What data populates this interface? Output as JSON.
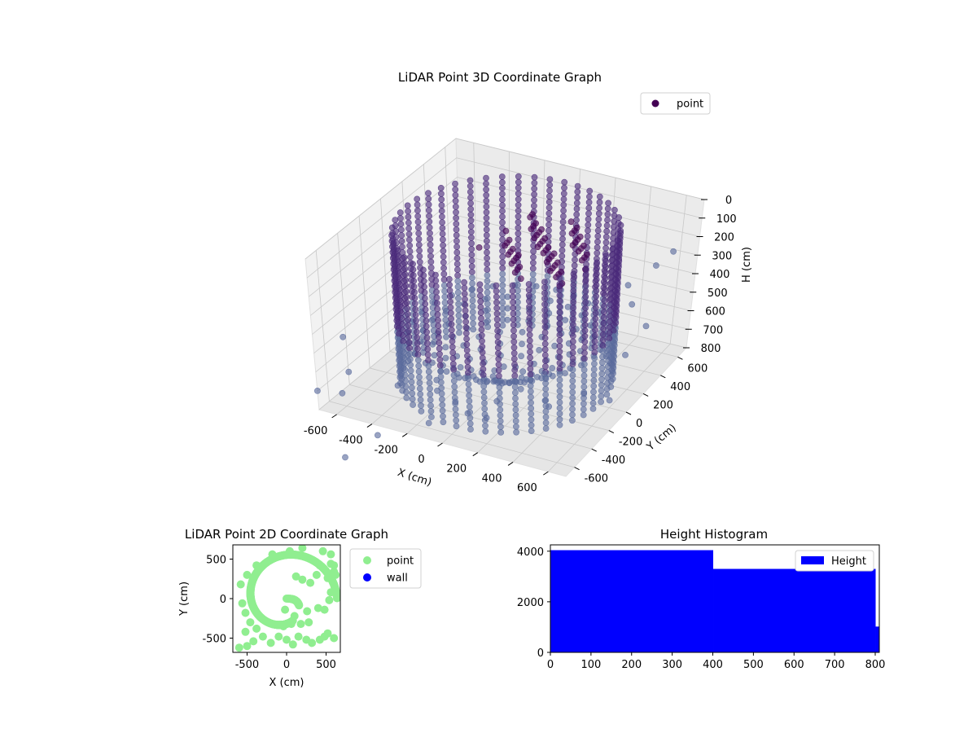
{
  "chart_data": [
    {
      "type": "scatter",
      "title": "LiDAR Point 3D Coordinate Graph",
      "xlabel": "X (cm)",
      "ylabel": "Y (cm)",
      "zlabel": "H (cm)",
      "xlim": [
        -700,
        700
      ],
      "ylim": [
        -700,
        700
      ],
      "zlim": [
        800,
        0
      ],
      "x_ticks": [
        "-600",
        "-400",
        "-200",
        "0",
        "200",
        "400",
        "600"
      ],
      "y_ticks": [
        "-600",
        "-400",
        "-200",
        "0",
        "200",
        "400",
        "600"
      ],
      "z_ticks": [
        "0",
        "100",
        "200",
        "300",
        "400",
        "500",
        "600",
        "700",
        "800"
      ],
      "grid": true,
      "legend": {
        "placement": "top-right",
        "entries": [
          "point"
        ]
      },
      "colors": {
        "point": "#440154",
        "point_dark": "#4a2a7a",
        "point_light": "#5a6b9c"
      },
      "series": [
        {
          "name": "point",
          "structures": {
            "cylinder": {
              "center": [
                0,
                0
              ],
              "radius": 550,
              "height_range": [
                0,
                800
              ]
            },
            "floor_cone": {
              "radius": 550,
              "height_range": [
                520,
                800
              ]
            },
            "ceiling_cluster": {
              "x_range": [
                -120,
                350
              ],
              "y_range": [
                -60,
                420
              ],
              "height_range": [
                90,
                230
              ]
            }
          },
          "scatter_points": [
            [
              -640,
              -520,
              480
            ],
            [
              -520,
              -760,
              640
            ],
            [
              -300,
              -820,
              780
            ],
            [
              -450,
              -900,
              900
            ],
            [
              -700,
              -700,
              700
            ],
            [
              -560,
              -620,
              600
            ],
            [
              -100,
              -550,
              560
            ],
            [
              120,
              -640,
              640
            ],
            [
              200,
              -480,
              520
            ],
            [
              260,
              -700,
              600
            ],
            [
              350,
              -500,
              520
            ],
            [
              420,
              -380,
              480
            ],
            [
              460,
              420,
              380
            ],
            [
              520,
              360,
              440
            ],
            [
              560,
              520,
              300
            ],
            [
              620,
              580,
              240
            ],
            [
              640,
              300,
              500
            ],
            [
              580,
              200,
              620
            ],
            [
              500,
              -100,
              700
            ],
            [
              380,
              -260,
              720
            ],
            [
              600,
              0,
              760
            ],
            [
              -60,
              -720,
              700
            ],
            [
              30,
              -600,
              620
            ],
            [
              -380,
              -460,
              700
            ],
            [
              -200,
              -380,
              720
            ],
            [
              100,
              -300,
              740
            ],
            [
              300,
              -150,
              760
            ]
          ]
        }
      ]
    },
    {
      "type": "scatter",
      "title": "LiDAR Point 2D Coordinate Graph",
      "xlabel": "X (cm)",
      "ylabel": "Y (cm)",
      "xlim": [
        -680,
        680
      ],
      "ylim": [
        -680,
        680
      ],
      "x_ticks": [
        "-500",
        "0",
        "500"
      ],
      "y_ticks": [
        "-500",
        "0",
        "500"
      ],
      "legend": {
        "placement": "outside-right",
        "entries": [
          "point",
          "wall"
        ]
      },
      "series": [
        {
          "name": "point",
          "color": "#90ee90",
          "points": [
            [
              -600,
              -620
            ],
            [
              -500,
              -600
            ],
            [
              -420,
              -540
            ],
            [
              -300,
              -480
            ],
            [
              -200,
              -560
            ],
            [
              -100,
              -480
            ],
            [
              0,
              -520
            ],
            [
              80,
              -580
            ],
            [
              150,
              -480
            ],
            [
              250,
              -520
            ],
            [
              320,
              -560
            ],
            [
              420,
              -520
            ],
            [
              480,
              -480
            ],
            [
              520,
              -440
            ],
            [
              600,
              -500
            ],
            [
              -520,
              -420
            ],
            [
              -40,
              -350
            ],
            [
              60,
              -320
            ],
            [
              180,
              -320
            ],
            [
              280,
              -300
            ],
            [
              -20,
              -140
            ],
            [
              100,
              -220
            ],
            [
              260,
              -160
            ],
            [
              400,
              -120
            ],
            [
              480,
              -140
            ],
            [
              540,
              -20
            ],
            [
              560,
              80
            ],
            [
              600,
              180
            ],
            [
              520,
              260
            ],
            [
              600,
              420
            ],
            [
              560,
              560
            ],
            [
              460,
              600
            ],
            [
              420,
              420
            ],
            [
              380,
              300
            ],
            [
              300,
              200
            ],
            [
              200,
              240
            ],
            [
              120,
              280
            ],
            [
              620,
              300
            ],
            [
              600,
              340
            ],
            [
              560,
              440
            ],
            [
              -580,
              180
            ],
            [
              -560,
              -60
            ],
            [
              -520,
              -180
            ],
            [
              -460,
              -300
            ],
            [
              -380,
              -380
            ],
            [
              40,
              600
            ],
            [
              200,
              640
            ],
            [
              -180,
              560
            ],
            [
              -380,
              420
            ],
            [
              -500,
              300
            ]
          ]
        },
        {
          "name": "wall",
          "color": "#0000ff",
          "points": []
        }
      ]
    },
    {
      "type": "bar",
      "title": "Height Histogram",
      "xlim": [
        0,
        810
      ],
      "ylim": [
        0,
        4250
      ],
      "x_ticks": [
        "0",
        "100",
        "200",
        "300",
        "400",
        "500",
        "600",
        "700",
        "800"
      ],
      "y_ticks": [
        "0",
        "2000",
        "4000"
      ],
      "legend": {
        "placement": "top-right",
        "entries": [
          "Height"
        ]
      },
      "series": [
        {
          "name": "Height",
          "color": "#0000ff",
          "bins": [
            {
              "start": 0,
              "end": 401,
              "count": 4040
            },
            {
              "start": 401,
              "end": 801,
              "count": 3300
            },
            {
              "start": 801,
              "end": 810,
              "count": 1020
            }
          ]
        }
      ]
    }
  ]
}
